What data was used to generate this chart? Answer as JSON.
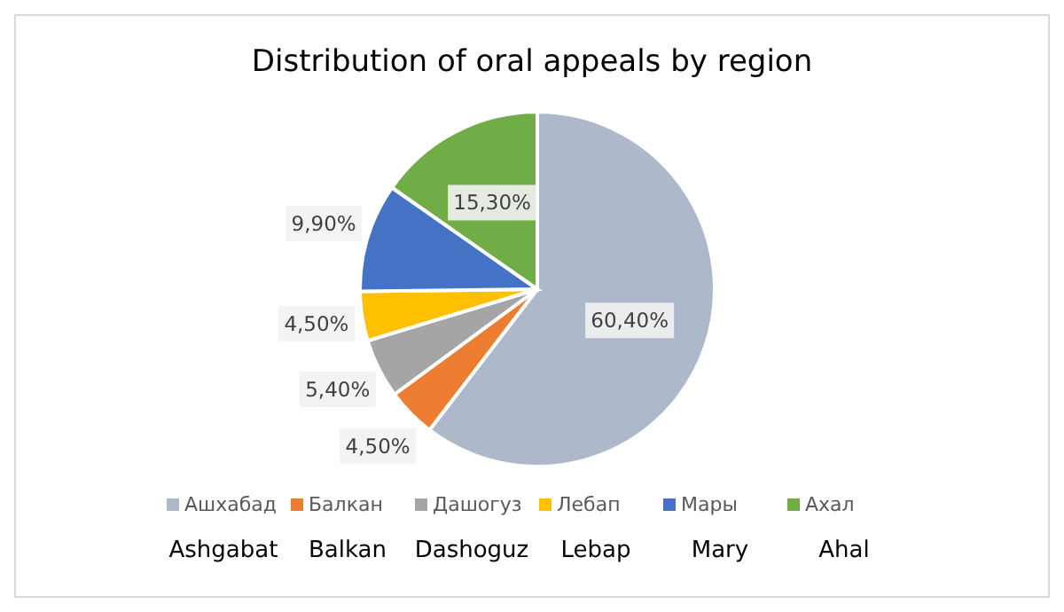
{
  "chart_data": {
    "type": "pie",
    "title": "Distribution of oral appeals by region",
    "categories": [
      "Ашхабад",
      "Балкан",
      "Дашогуз",
      "Лебап",
      "Мары",
      "Ахал"
    ],
    "values": [
      60.4,
      4.5,
      5.4,
      4.5,
      9.9,
      15.3
    ],
    "colors": [
      "#adb9ca",
      "#ed7d31",
      "#a5a5a5",
      "#ffc000",
      "#4472c4",
      "#70ad47"
    ],
    "value_labels": [
      "60,40%",
      "4,50%",
      "5,40%",
      "4,50%",
      "9,90%",
      "15,30%"
    ],
    "annotations": [
      "Ashgabat",
      "Balkan",
      "Dashoguz",
      "Lebap",
      "Mary",
      "Ahal"
    ],
    "legend": "bottom"
  }
}
